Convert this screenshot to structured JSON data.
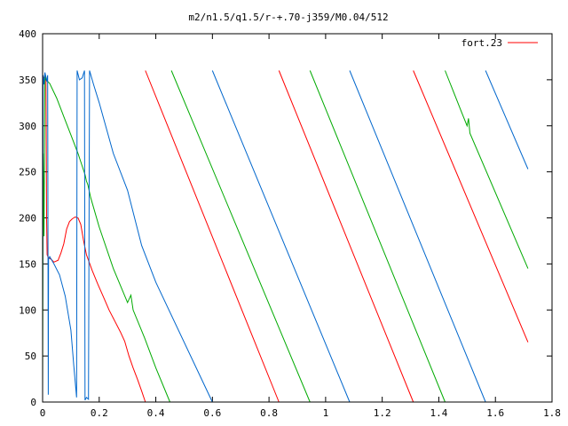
{
  "chart_data": {
    "type": "line",
    "title": "m2/n1.5/q1.5/r-+.70-j359/M0.04/512",
    "xlabel": "",
    "ylabel": "",
    "xlim": [
      0,
      1.8
    ],
    "ylim": [
      0,
      400
    ],
    "x_ticks": [
      0,
      0.2,
      0.4,
      0.6,
      0.8,
      1,
      1.2,
      1.4,
      1.6,
      1.8
    ],
    "x_tick_labels": [
      "0",
      "0.2",
      "0.4",
      "0.6",
      "0.8",
      "1",
      "1.2",
      "1.4",
      "1.6",
      "1.8"
    ],
    "y_ticks": [
      0,
      50,
      100,
      150,
      200,
      250,
      300,
      350,
      400
    ],
    "y_tick_labels": [
      "0",
      "50",
      "100",
      "150",
      "200",
      "250",
      "300",
      "350",
      "400"
    ],
    "grid": false,
    "legend": {
      "position": "top-right",
      "entries": [
        {
          "label": "fort.23",
          "color": "#ff0000"
        }
      ]
    },
    "series": [
      {
        "color": "#ff0000",
        "points": [
          [
            0.0,
            350
          ],
          [
            0.004,
            352
          ],
          [
            0.009,
            354
          ],
          [
            0.012,
            353
          ],
          [
            0.014,
            200
          ],
          [
            0.016,
            160
          ],
          [
            0.02,
            157
          ],
          [
            0.03,
            155
          ],
          [
            0.04,
            152
          ],
          [
            0.055,
            154
          ],
          [
            0.065,
            162
          ],
          [
            0.075,
            172
          ],
          [
            0.085,
            188
          ],
          [
            0.095,
            196
          ],
          [
            0.105,
            199
          ],
          [
            0.115,
            201
          ],
          [
            0.125,
            200
          ],
          [
            0.135,
            193
          ],
          [
            0.145,
            175
          ],
          [
            0.155,
            160
          ],
          [
            0.175,
            143
          ],
          [
            0.195,
            128
          ],
          [
            0.215,
            114
          ],
          [
            0.235,
            100
          ],
          [
            0.255,
            88
          ],
          [
            0.275,
            76
          ],
          [
            0.29,
            66
          ],
          [
            0.305,
            50
          ],
          [
            0.32,
            37
          ],
          [
            0.335,
            25
          ],
          [
            0.35,
            12
          ],
          [
            0.363,
            0
          ],
          null,
          [
            0.363,
            360
          ],
          [
            0.835,
            0
          ],
          null,
          [
            0.835,
            360
          ],
          [
            1.31,
            0
          ],
          null,
          [
            1.31,
            360
          ],
          [
            1.715,
            65
          ]
        ]
      },
      {
        "color": "#00aa00",
        "points": [
          [
            0.0,
            5
          ],
          [
            0.002,
            270
          ],
          [
            0.005,
            180
          ],
          [
            0.008,
            356
          ],
          [
            0.012,
            350
          ],
          [
            0.025,
            346
          ],
          [
            0.05,
            330
          ],
          [
            0.075,
            310
          ],
          [
            0.1,
            290
          ],
          [
            0.125,
            270
          ],
          [
            0.15,
            247
          ],
          [
            0.155,
            240
          ],
          [
            0.16,
            236
          ],
          [
            0.17,
            222
          ],
          [
            0.2,
            190
          ],
          [
            0.25,
            145
          ],
          [
            0.3,
            108
          ],
          [
            0.312,
            116
          ],
          [
            0.32,
            100
          ],
          [
            0.36,
            70
          ],
          [
            0.4,
            37
          ],
          [
            0.45,
            0
          ],
          null,
          [
            0.455,
            360
          ],
          [
            0.945,
            0
          ],
          null,
          [
            0.945,
            360
          ],
          [
            1.422,
            0
          ],
          null,
          [
            1.422,
            360
          ],
          [
            1.48,
            315
          ],
          [
            1.5,
            300
          ],
          [
            1.505,
            308
          ],
          [
            1.51,
            292
          ],
          [
            1.715,
            145
          ]
        ]
      },
      {
        "color": "#0066cc",
        "points": [
          [
            0.0,
            90
          ],
          [
            0.002,
            355
          ],
          [
            0.005,
            345
          ],
          [
            0.008,
            358
          ],
          [
            0.015,
            348
          ],
          [
            0.018,
            355
          ],
          [
            0.02,
            8
          ],
          [
            0.021,
            155
          ],
          [
            0.025,
            158
          ],
          [
            0.04,
            150
          ],
          [
            0.06,
            138
          ],
          [
            0.08,
            115
          ],
          [
            0.1,
            78
          ],
          [
            0.11,
            40
          ],
          [
            0.12,
            5
          ],
          [
            0.122,
            360
          ],
          [
            0.13,
            350
          ],
          [
            0.14,
            352
          ],
          [
            0.148,
            360
          ],
          [
            0.15,
            2
          ],
          [
            0.155,
            5
          ],
          [
            0.162,
            3
          ],
          [
            0.166,
            360
          ],
          [
            0.18,
            345
          ],
          [
            0.2,
            325
          ],
          [
            0.25,
            270
          ],
          [
            0.3,
            230
          ],
          [
            0.35,
            170
          ],
          [
            0.4,
            130
          ],
          [
            0.6,
            0
          ],
          null,
          [
            0.6,
            360
          ],
          [
            1.085,
            0
          ],
          null,
          [
            1.085,
            360
          ],
          [
            1.565,
            0
          ],
          null,
          [
            1.565,
            360
          ],
          [
            1.715,
            253
          ]
        ]
      }
    ]
  }
}
